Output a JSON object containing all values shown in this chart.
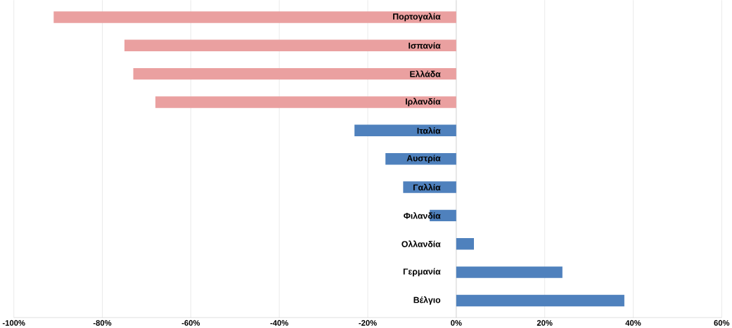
{
  "chart_data": {
    "type": "bar",
    "orientation": "horizontal",
    "categories": [
      "Πορτογαλία",
      "Ισπανία",
      "Ελλάδα",
      "Ιρλανδία",
      "Ιταλία",
      "Αυστρία",
      "Γαλλία",
      "Φιλανδία",
      "Ολλανδία",
      "Γερμανία",
      "Βέλγιο"
    ],
    "values": [
      -91,
      -75,
      -73,
      -68,
      -23,
      -16,
      -12,
      -6,
      4,
      24,
      38
    ],
    "colors": [
      "#eaa0a0",
      "#eaa0a0",
      "#eaa0a0",
      "#eaa0a0",
      "#4f81bd",
      "#4f81bd",
      "#4f81bd",
      "#4f81bd",
      "#4f81bd",
      "#4f81bd",
      "#4f81bd"
    ],
    "xlim": [
      -100,
      60
    ],
    "xticks": [
      {
        "value": -100,
        "label": "-100%"
      },
      {
        "value": -80,
        "label": "-80%"
      },
      {
        "value": -60,
        "label": "-60%"
      },
      {
        "value": -40,
        "label": "-40%"
      },
      {
        "value": -20,
        "label": "-20%"
      },
      {
        "value": 0,
        "label": "0%"
      },
      {
        "value": 20,
        "label": "20%"
      },
      {
        "value": 40,
        "label": "40%"
      },
      {
        "value": 60,
        "label": "60%"
      }
    ],
    "grid": "x"
  }
}
